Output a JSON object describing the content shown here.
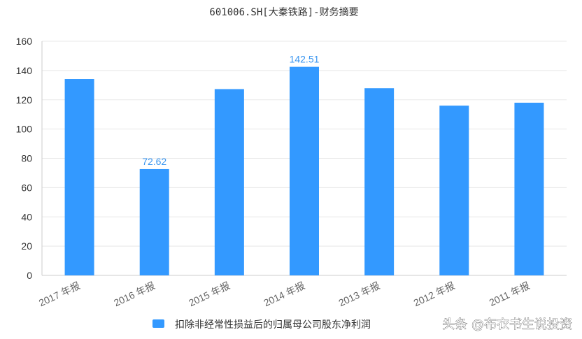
{
  "watermark": "头条 @布衣书生说投资",
  "chart_data": {
    "type": "bar",
    "title": "601006.SH[大秦铁路]-财务摘要",
    "categories": [
      "2017 年报",
      "2016 年报",
      "2015 年报",
      "2014 年报",
      "2013 年报",
      "2012 年报",
      "2011 年报"
    ],
    "series": [
      {
        "name": "扣除非经常性损益后的归属母公司股东净利润",
        "color": "#3399ff",
        "values": [
          134.2,
          72.62,
          127.3,
          142.51,
          127.9,
          116.0,
          118.0
        ],
        "data_labels": [
          null,
          "72.62",
          null,
          "142.51",
          null,
          null,
          null
        ]
      }
    ],
    "ylim": [
      0,
      160
    ],
    "yticks": [
      0,
      20,
      40,
      60,
      80,
      100,
      120,
      140,
      160
    ],
    "xlabel": "",
    "ylabel": "",
    "grid": true,
    "legend_position": "bottom"
  }
}
